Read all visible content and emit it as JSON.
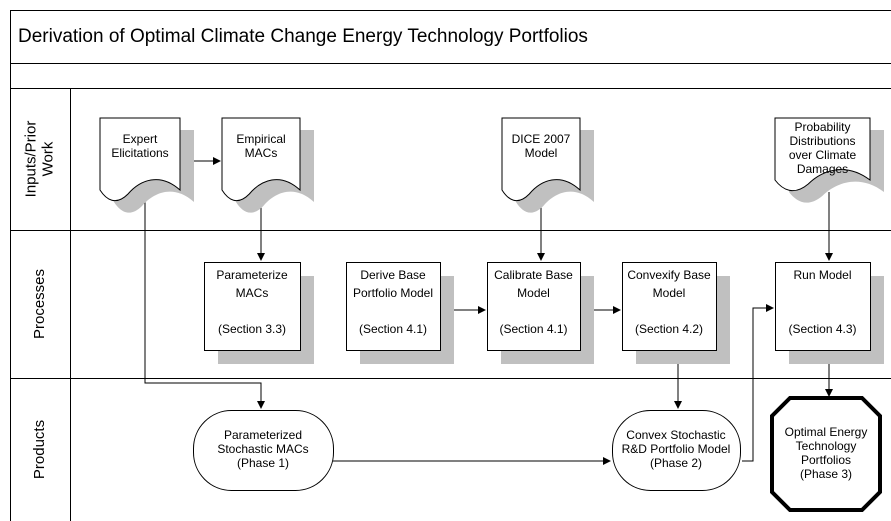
{
  "header": {
    "title": "Derivation of Optimal Climate Change Energy Technology Portfolios"
  },
  "lanes": [
    {
      "lines": [
        "Inputs/Prior",
        "Work"
      ]
    },
    {
      "lines": [
        "Processes"
      ]
    },
    {
      "lines": [
        "Products"
      ]
    }
  ],
  "nodes": [
    {
      "lines": [
        "Expert",
        "Elicitations"
      ]
    },
    {
      "lines": [
        "Empirical",
        "MACs"
      ]
    },
    {
      "lines": [
        "DICE 2007",
        "Model"
      ]
    },
    {
      "lines": [
        "Probability",
        "Distributions",
        "over Climate",
        "Damages"
      ]
    },
    {
      "lines": [
        "Parameterize",
        "MACs",
        "",
        "(Section 3.3)"
      ]
    },
    {
      "lines": [
        "Derive Base",
        "Portfolio Model",
        "",
        "(Section 4.1)"
      ]
    },
    {
      "lines": [
        "Calibrate Base",
        "Model",
        "",
        "(Section 4.1)"
      ]
    },
    {
      "lines": [
        "Convexify Base",
        "Model",
        "",
        "(Section 4.2)"
      ]
    },
    {
      "lines": [
        "Run Model",
        "",
        "",
        "(Section 4.3)"
      ]
    },
    {
      "lines": [
        "Parameterized",
        "Stochastic MACs",
        "(Phase 1)"
      ]
    },
    {
      "lines": [
        "Convex Stochastic",
        "R&D Portfolio Model",
        "(Phase 2)"
      ]
    },
    {
      "lines": [
        "Optimal Energy",
        "Technology",
        "Portfolios",
        "(Phase 3)"
      ]
    }
  ]
}
